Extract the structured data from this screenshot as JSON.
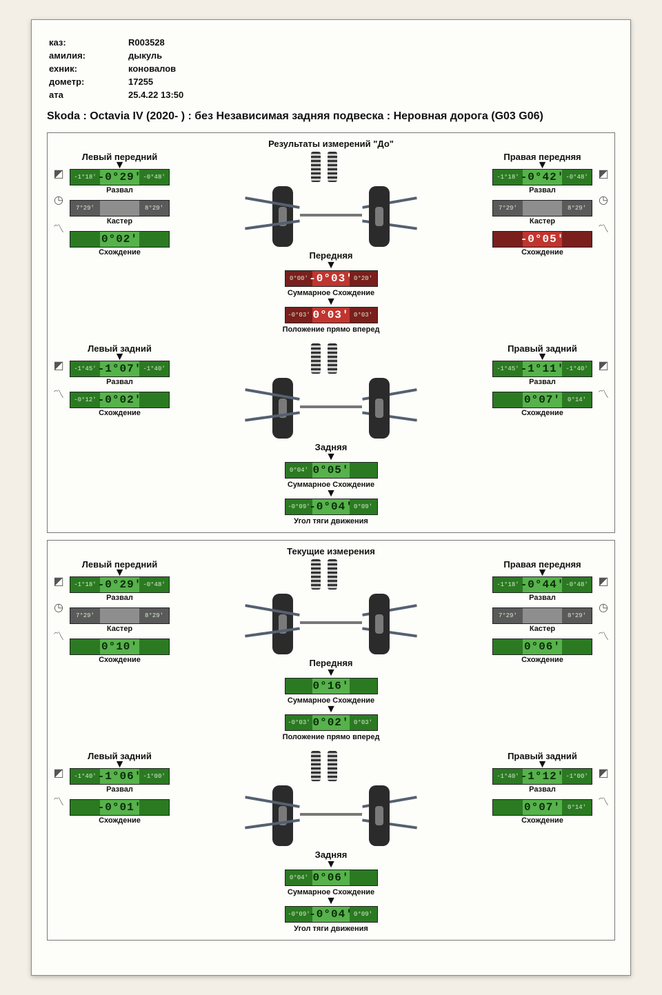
{
  "colors": {
    "ok": "#56b24a",
    "ok_dark": "#2b7a22",
    "grey": "#8e8e8e",
    "bad": "#c0352f",
    "bad_dark": "#7a1f1c",
    "seg_text": "#2a3a2a"
  },
  "header": {
    "rows": [
      {
        "k": "каз:",
        "v": "R003528"
      },
      {
        "k": "амилия:",
        "v": "дыкуль"
      },
      {
        "k": "ехник:",
        "v": "коновалов"
      },
      {
        "k": "дометр:",
        "v": "17255"
      },
      {
        "k": "ата",
        "v": "25.4.22 13:50"
      }
    ]
  },
  "title": "Skoda : Octavia IV (2020-  ) : без Независимая задняя подвеска : Неровная дорога (G03 G06)",
  "labels": {
    "camber": "Развал",
    "caster": "Кастер",
    "toe": "Схождение",
    "front": "Передняя",
    "rear": "Задняя",
    "total_toe": "Суммарное Схождение",
    "ahead": "Положение прямо вперед",
    "thrust": "Угол тяги движения",
    "lf": "Левый передний",
    "rf": "Правая передняя",
    "lr": "Левый задний",
    "rr": "Правый задний"
  },
  "panels": [
    {
      "title": "Результаты измерений \"До\"",
      "front": {
        "left": {
          "camber": {
            "lo": "-1°18'",
            "hi": "-0°48'",
            "val": "-0°29'",
            "status": "ok"
          },
          "caster": {
            "lo": "7°29'",
            "hi": "8°29'",
            "val": "",
            "status": "grey"
          },
          "toe": {
            "lo": "",
            "hi": "",
            "val": "0°02'",
            "status": "ok"
          }
        },
        "right": {
          "camber": {
            "lo": "-1°18'",
            "hi": "-0°48'",
            "val": "-0°42'",
            "status": "ok"
          },
          "caster": {
            "lo": "7°29'",
            "hi": "8°29'",
            "val": "",
            "status": "grey"
          },
          "toe": {
            "lo": "",
            "hi": "",
            "val": "-0°05'",
            "status": "bad"
          }
        },
        "center": {
          "axle_label": "Передняя",
          "total_toe": {
            "lo": "0°00'",
            "hi": "0°20'",
            "val": "-0°03'",
            "status": "bad"
          },
          "ahead": {
            "lo": "-0°03'",
            "hi": "0°03'",
            "val": "0°03'",
            "status": "bad"
          }
        }
      },
      "rear": {
        "left": {
          "camber": {
            "lo": "-1°45'",
            "hi": "-1°40'",
            "val": "-1°07'",
            "status": "ok"
          },
          "toe": {
            "lo": "-0°12'",
            "hi": "",
            "val": "-0°02'",
            "status": "ok"
          }
        },
        "right": {
          "camber": {
            "lo": "-1°45'",
            "hi": "-1°40'",
            "val": "-1°11'",
            "status": "ok"
          },
          "toe": {
            "lo": "",
            "hi": "0°14'",
            "val": "0°07'",
            "status": "ok"
          }
        },
        "center": {
          "axle_label": "Задняя",
          "total_toe": {
            "lo": "0°04'",
            "hi": "",
            "val": "0°05'",
            "status": "ok"
          },
          "thrust": {
            "lo": "-0°09'",
            "hi": "0°09'",
            "val": "-0°04'",
            "status": "ok"
          }
        }
      }
    },
    {
      "title": "Текущие измерения",
      "front": {
        "left": {
          "camber": {
            "lo": "-1°18'",
            "hi": "-0°48'",
            "val": "-0°29'",
            "status": "ok"
          },
          "caster": {
            "lo": "7°29'",
            "hi": "8°29'",
            "val": "",
            "status": "grey"
          },
          "toe": {
            "lo": "",
            "hi": "",
            "val": "0°10'",
            "status": "ok"
          }
        },
        "right": {
          "camber": {
            "lo": "-1°18'",
            "hi": "-0°48'",
            "val": "-0°44'",
            "status": "ok"
          },
          "caster": {
            "lo": "7°29'",
            "hi": "8°29'",
            "val": "",
            "status": "grey"
          },
          "toe": {
            "lo": "",
            "hi": "",
            "val": "0°06'",
            "status": "ok"
          }
        },
        "center": {
          "axle_label": "Передняя",
          "total_toe": {
            "lo": "",
            "hi": "",
            "val": "0°16'",
            "status": "ok"
          },
          "ahead": {
            "lo": "-0°03'",
            "hi": "0°03'",
            "val": "0°02'",
            "status": "ok"
          }
        }
      },
      "rear": {
        "left": {
          "camber": {
            "lo": "-1°40'",
            "hi": "-1°00'",
            "val": "-1°06'",
            "status": "ok"
          },
          "toe": {
            "lo": "",
            "hi": "",
            "val": "-0°01'",
            "status": "ok"
          }
        },
        "right": {
          "camber": {
            "lo": "-1°40'",
            "hi": "-1°00'",
            "val": "-1°12'",
            "status": "ok"
          },
          "toe": {
            "lo": "",
            "hi": "0°14'",
            "val": "0°07'",
            "status": "ok"
          }
        },
        "center": {
          "axle_label": "Задняя",
          "total_toe": {
            "lo": "0°04'",
            "hi": "",
            "val": "0°06'",
            "status": "ok"
          },
          "thrust": {
            "lo": "-0°09'",
            "hi": "0°09'",
            "val": "-0°04'",
            "status": "ok"
          }
        }
      }
    }
  ]
}
